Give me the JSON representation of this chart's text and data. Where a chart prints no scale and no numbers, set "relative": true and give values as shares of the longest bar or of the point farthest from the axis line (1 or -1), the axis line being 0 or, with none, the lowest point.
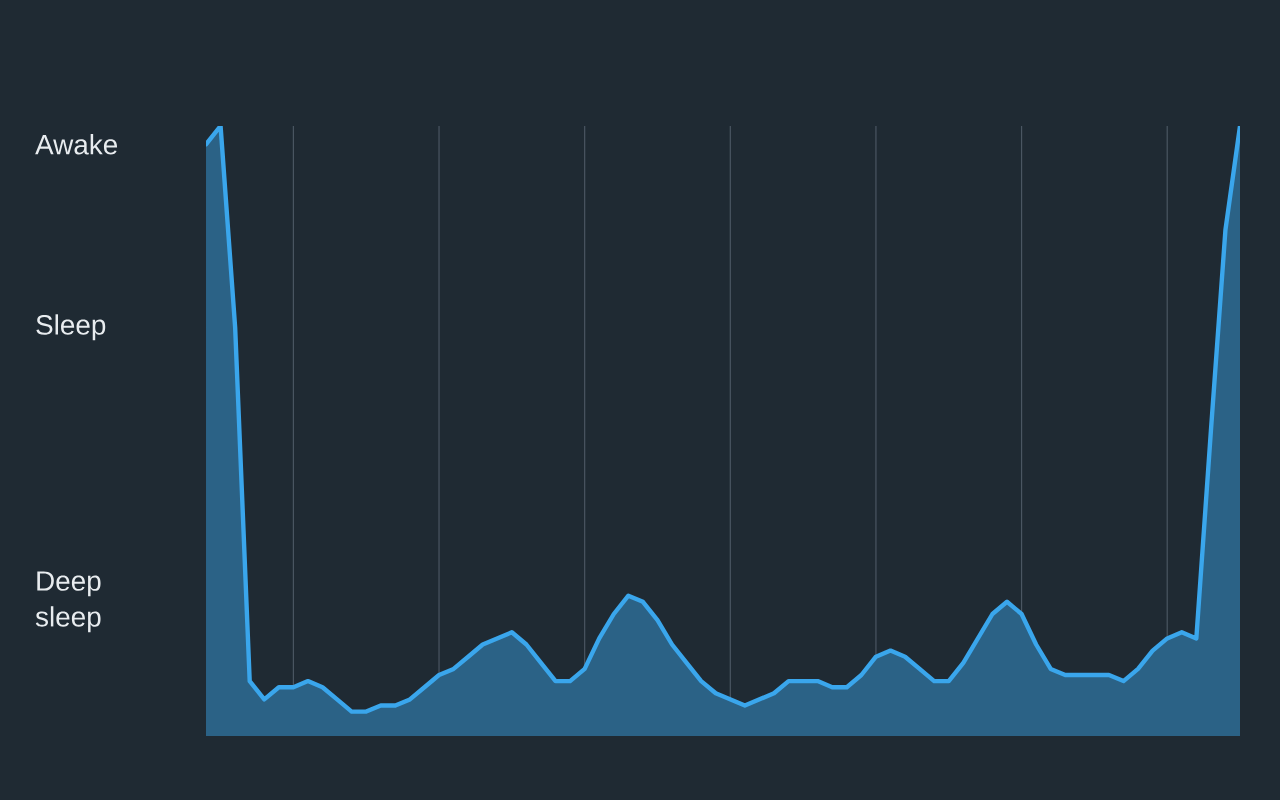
{
  "chart_data": {
    "type": "area",
    "relative": true,
    "color": "#3aa6ec",
    "grid": "x",
    "categories": [
      null,
      null,
      null,
      null,
      null,
      null,
      null,
      null,
      null,
      null,
      null,
      null,
      null,
      null,
      null,
      null,
      null,
      null,
      null,
      null,
      null,
      null,
      null,
      null,
      null,
      null,
      null,
      null,
      null,
      null,
      null,
      null,
      null,
      null,
      null,
      null,
      null,
      null,
      null,
      null,
      null,
      null,
      null,
      null,
      null,
      null,
      null,
      null,
      null,
      null,
      null,
      null,
      null,
      null,
      null,
      null,
      null,
      null,
      null,
      null,
      null,
      null,
      null,
      null,
      null,
      null,
      null,
      null,
      null,
      null,
      null,
      null
    ],
    "values": [
      0.97,
      1.0,
      0.67,
      0.09,
      0.06,
      0.08,
      0.08,
      0.09,
      0.08,
      0.06,
      0.04,
      0.04,
      0.05,
      0.05,
      0.06,
      0.08,
      0.1,
      0.11,
      0.13,
      0.15,
      0.16,
      0.17,
      0.15,
      0.12,
      0.09,
      0.09,
      0.11,
      0.16,
      0.2,
      0.23,
      0.22,
      0.19,
      0.15,
      0.12,
      0.09,
      0.07,
      0.06,
      0.05,
      0.06,
      0.07,
      0.09,
      0.09,
      0.09,
      0.08,
      0.08,
      0.1,
      0.13,
      0.14,
      0.13,
      0.11,
      0.09,
      0.09,
      0.12,
      0.16,
      0.2,
      0.22,
      0.2,
      0.15,
      0.11,
      0.1,
      0.1,
      0.1,
      0.1,
      0.09,
      0.11,
      0.14,
      0.16,
      0.17,
      0.16,
      0.5,
      0.83,
      1.0
    ],
    "annotations": [
      "Awake",
      "Sleep",
      "Deep sleep"
    ]
  }
}
